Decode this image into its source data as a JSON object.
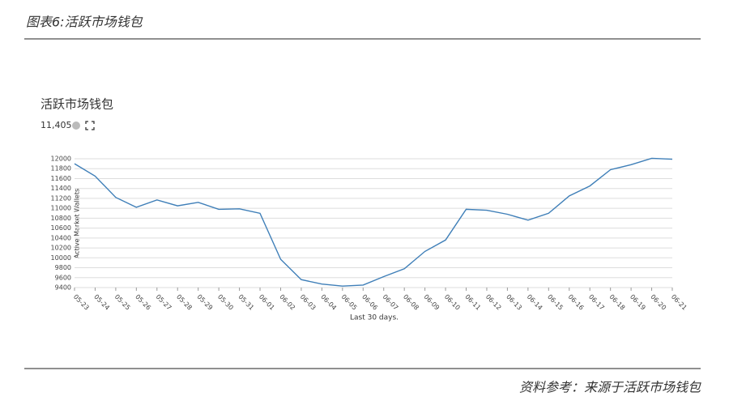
{
  "figure_caption": "图表6:活跃市场钱包",
  "source": "资料参考：来源于活跃市场钱包",
  "chart_data": {
    "type": "line",
    "title": "活跃市场钱包",
    "headline_value": "11,405",
    "y_label": "Active Market Wallets",
    "x_label": "Last 30 days.",
    "categories": [
      "05-23",
      "05-24",
      "05-25",
      "05-26",
      "05-27",
      "05-28",
      "05-29",
      "05-30",
      "05-31",
      "06-01",
      "06-02",
      "06-03",
      "06-04",
      "06-05",
      "06-06",
      "06-07",
      "06-08",
      "06-09",
      "06-10",
      "06-11",
      "06-12",
      "06-13",
      "06-14",
      "06-15",
      "06-16",
      "06-17",
      "06-18",
      "06-19",
      "06-20",
      "06-21"
    ],
    "series": [
      {
        "name": "Active Market Wallets",
        "color": "#3f7fb8",
        "values": [
          11900,
          11650,
          11220,
          11020,
          11170,
          11050,
          11120,
          10980,
          10990,
          10900,
          9970,
          9560,
          9470,
          9430,
          9450,
          9620,
          9780,
          10130,
          10360,
          10980,
          10960,
          10880,
          10760,
          10900,
          11250,
          11450,
          11780,
          11880,
          12010,
          11990
        ]
      }
    ],
    "ylim": [
      9400,
      12000
    ],
    "yticks": [
      9400,
      9600,
      9800,
      10000,
      10200,
      10400,
      10600,
      10800,
      11000,
      11200,
      11400,
      11600,
      11800,
      12000
    ],
    "grid": true
  }
}
